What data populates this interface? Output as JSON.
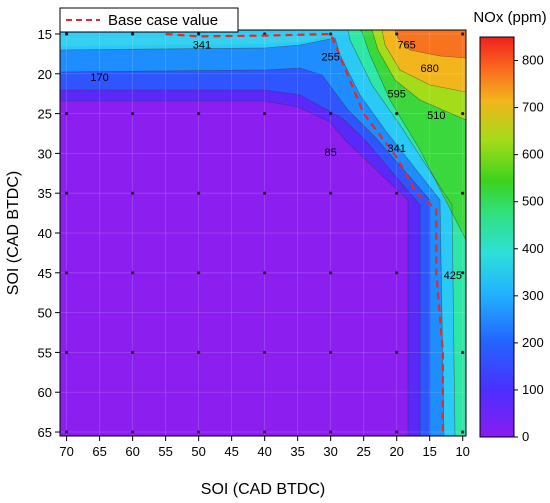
{
  "chart_data": {
    "type": "heatmap",
    "subtype": "filled-contour",
    "xlabel": "SOI (CAD BTDC)",
    "ylabel": "SOI (CAD BTDC)",
    "x_ticks": [
      70,
      65,
      60,
      55,
      50,
      45,
      40,
      35,
      30,
      25,
      20,
      15,
      10
    ],
    "y_ticks": [
      15,
      20,
      25,
      30,
      35,
      40,
      45,
      50,
      55,
      60,
      65
    ],
    "xlim": [
      71,
      9.5
    ],
    "ylim": [
      14.5,
      65.5
    ],
    "x_reversed": true,
    "y_reversed": true,
    "grid": true,
    "colorbar": {
      "title": "NOx (ppm)",
      "min": 0,
      "max": 850,
      "ticks": [
        0,
        100,
        200,
        300,
        400,
        500,
        600,
        700,
        800
      ],
      "colors": [
        "#8a1cf0",
        "#3a3cff",
        "#1d8dff",
        "#2ad8f0",
        "#31e07e",
        "#3cd21d",
        "#a2dc19",
        "#f0c81a",
        "#fa7a1f",
        "#f2211d"
      ]
    },
    "sample_points": {
      "x": [
        70,
        60,
        50,
        40,
        30,
        20,
        10
      ],
      "y": [
        15,
        25,
        35,
        45,
        55,
        65
      ]
    },
    "contour_labels": [
      {
        "text": "341",
        "x": 49.5,
        "y": 16.3
      },
      {
        "text": "255",
        "x": 30,
        "y": 17.8
      },
      {
        "text": "765",
        "x": 18.5,
        "y": 16.3
      },
      {
        "text": "170",
        "x": 65,
        "y": 20.4
      },
      {
        "text": "680",
        "x": 15,
        "y": 19.3
      },
      {
        "text": "595",
        "x": 20,
        "y": 22.5
      },
      {
        "text": "510",
        "x": 14,
        "y": 25.2
      },
      {
        "text": "341",
        "x": 20,
        "y": 29.3
      },
      {
        "text": "85",
        "x": 30,
        "y": 29.8
      },
      {
        "text": "425",
        "x": 11.5,
        "y": 45.3
      }
    ],
    "series": [
      {
        "name": "Base case value",
        "style": "dashed",
        "color": "#e02b2b",
        "points": [
          [
            55,
            15
          ],
          [
            50,
            15.3
          ],
          [
            40,
            15.2
          ],
          [
            30,
            15
          ],
          [
            28,
            19
          ],
          [
            25,
            25
          ],
          [
            20,
            30.5
          ],
          [
            17,
            35
          ],
          [
            14,
            37
          ],
          [
            14,
            45
          ],
          [
            13,
            55
          ],
          [
            13,
            60
          ],
          [
            13,
            65
          ]
        ]
      }
    ],
    "legend": {
      "position": "top-left",
      "entries": [
        "Base case value"
      ]
    }
  }
}
